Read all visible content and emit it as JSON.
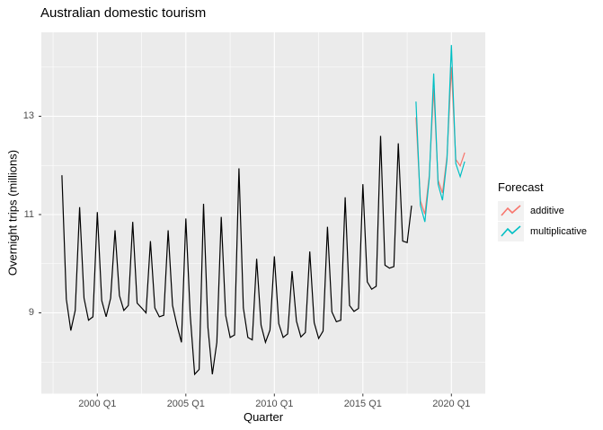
{
  "title": "Australian domestic tourism",
  "axes": {
    "x": {
      "label": "Quarter",
      "ticks": [
        {
          "label": "2000 Q1",
          "year": 2000
        },
        {
          "label": "2005 Q1",
          "year": 2005
        },
        {
          "label": "2010 Q1",
          "year": 2010
        },
        {
          "label": "2015 Q1",
          "year": 2015
        },
        {
          "label": "2020 Q1",
          "year": 2020
        }
      ]
    },
    "y": {
      "label": "Overnight trips (millions)",
      "ticks": [
        9,
        11,
        13
      ]
    }
  },
  "legend": {
    "title": "Forecast",
    "items": [
      {
        "label": "additive",
        "color": "#F8766D"
      },
      {
        "label": "multiplicative",
        "color": "#00BFC4"
      }
    ]
  },
  "colors": {
    "panel_bg": "#EBEBEB",
    "grid": "#FFFFFF",
    "tick_mark": "#333333",
    "tick_text": "#4D4D4D",
    "history": "#000000",
    "additive": "#F8766D",
    "multiplicative": "#00BFC4",
    "legend_key_bg": "#F2F2F2"
  },
  "chart_data": {
    "type": "line",
    "title": "Australian domestic tourism",
    "xlabel": "Quarter",
    "ylabel": "Overnight trips (millions)",
    "x_ticks": [
      "2000 Q1",
      "2005 Q1",
      "2010 Q1",
      "2015 Q1",
      "2020 Q1"
    ],
    "y_ticks": [
      9,
      11,
      13
    ],
    "ylim": [
      7.36,
      14.71
    ],
    "x_range_years": [
      1996.86,
      2021.89
    ],
    "grid": true,
    "legend_title": "Forecast",
    "legend_position": "right",
    "frequency": "quarterly",
    "series": [
      {
        "name": "history",
        "legend": null,
        "color": "#000000",
        "start": "1998 Q1",
        "start_year": 1998,
        "values": [
          11.8,
          9.28,
          8.64,
          9.05,
          11.15,
          9.3,
          8.85,
          8.92,
          11.05,
          9.25,
          8.92,
          9.3,
          10.68,
          9.35,
          9.05,
          9.15,
          10.85,
          9.2,
          9.1,
          9.0,
          10.46,
          9.1,
          8.92,
          8.95,
          10.68,
          9.15,
          8.75,
          8.4,
          10.92,
          8.95,
          7.75,
          7.85,
          11.22,
          8.7,
          7.75,
          8.4,
          10.95,
          8.95,
          8.5,
          8.55,
          11.94,
          9.1,
          8.5,
          8.45,
          10.1,
          8.75,
          8.4,
          8.65,
          10.15,
          8.78,
          8.5,
          8.57,
          9.85,
          8.83,
          8.51,
          8.6,
          10.25,
          8.8,
          8.48,
          8.63,
          10.75,
          9.02,
          8.82,
          8.85,
          11.35,
          9.15,
          9.03,
          9.09,
          11.62,
          9.63,
          9.48,
          9.54,
          12.6,
          9.97,
          9.91,
          9.94,
          12.45,
          10.46,
          10.43,
          11.18
        ]
      },
      {
        "name": "additive",
        "legend": "additive",
        "color": "#F8766D",
        "start": "2018 Q1",
        "start_year": 2018,
        "values": [
          12.98,
          11.28,
          11.01,
          11.8,
          13.57,
          11.7,
          11.44,
          12.18,
          14.0,
          12.12,
          11.99,
          12.26
        ]
      },
      {
        "name": "multiplicative",
        "legend": "multiplicative",
        "color": "#00BFC4",
        "start": "2018 Q1",
        "start_year": 2018,
        "values": [
          13.3,
          11.19,
          10.85,
          11.74,
          13.87,
          11.62,
          11.29,
          12.12,
          14.45,
          12.04,
          11.77,
          12.08
        ]
      }
    ]
  }
}
